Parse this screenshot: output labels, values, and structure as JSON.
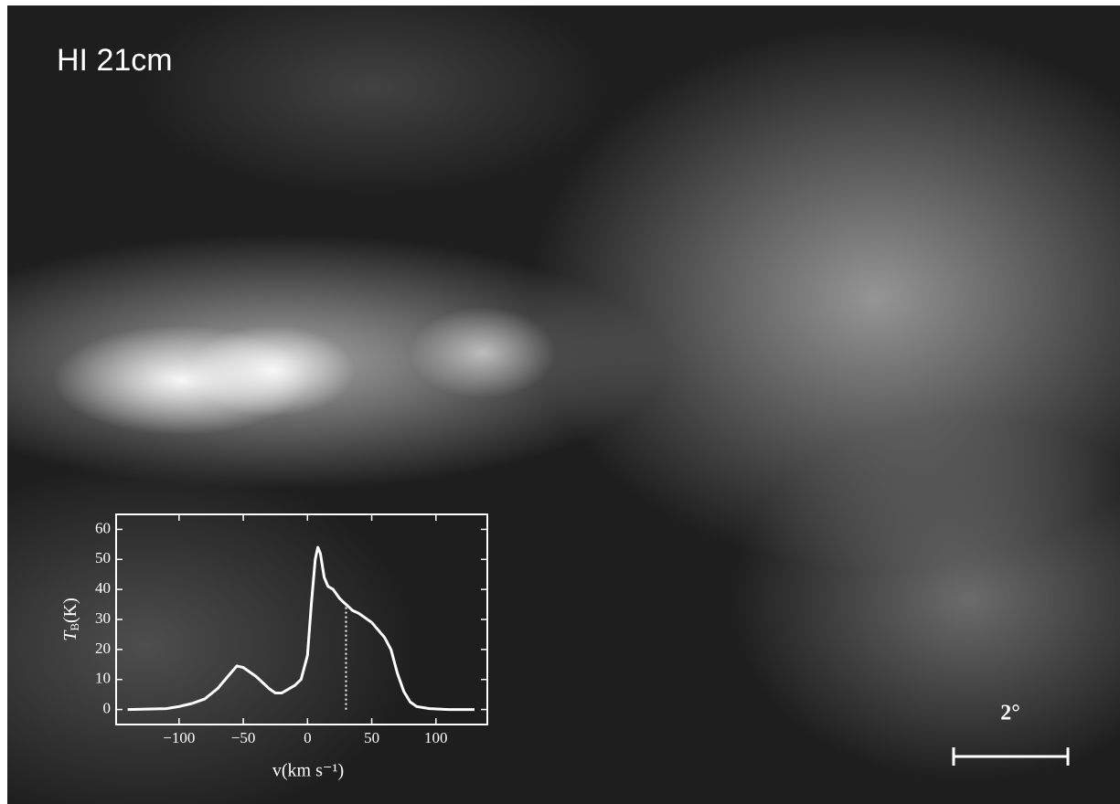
{
  "map_label": "HI 21cm",
  "scale_bar_label": "2°",
  "chart_data": {
    "type": "line",
    "x": [
      -140,
      -110,
      -100,
      -90,
      -80,
      -70,
      -60,
      -55,
      -50,
      -40,
      -30,
      -25,
      -20,
      -10,
      -5,
      0,
      3,
      6,
      8,
      10,
      13,
      16,
      20,
      25,
      30,
      35,
      40,
      50,
      60,
      65,
      70,
      75,
      80,
      85,
      95,
      110,
      130
    ],
    "values": [
      0,
      0.3,
      1,
      2,
      3.5,
      7,
      12,
      14.5,
      14,
      11,
      7,
      5.5,
      5.5,
      8,
      10,
      18,
      35,
      50,
      54,
      52,
      44,
      41,
      40,
      37,
      35,
      33,
      32,
      29,
      24,
      20,
      12,
      6,
      2.5,
      1,
      0.3,
      0,
      0
    ],
    "color": "#ffffff",
    "marker_x": 30,
    "xlim": [
      -149,
      140
    ],
    "ylim": [
      -5,
      65
    ],
    "xticks": [
      {
        "value": -100,
        "label": "−100"
      },
      {
        "value": -50,
        "label": "−50"
      },
      0,
      50,
      100
    ],
    "yticks": [
      0,
      10,
      20,
      30,
      40,
      50,
      60
    ],
    "xlabel": "v(km s⁻¹)",
    "ylabel": {
      "symbol": "T",
      "subscript": "B",
      "unit": "(K)"
    }
  }
}
